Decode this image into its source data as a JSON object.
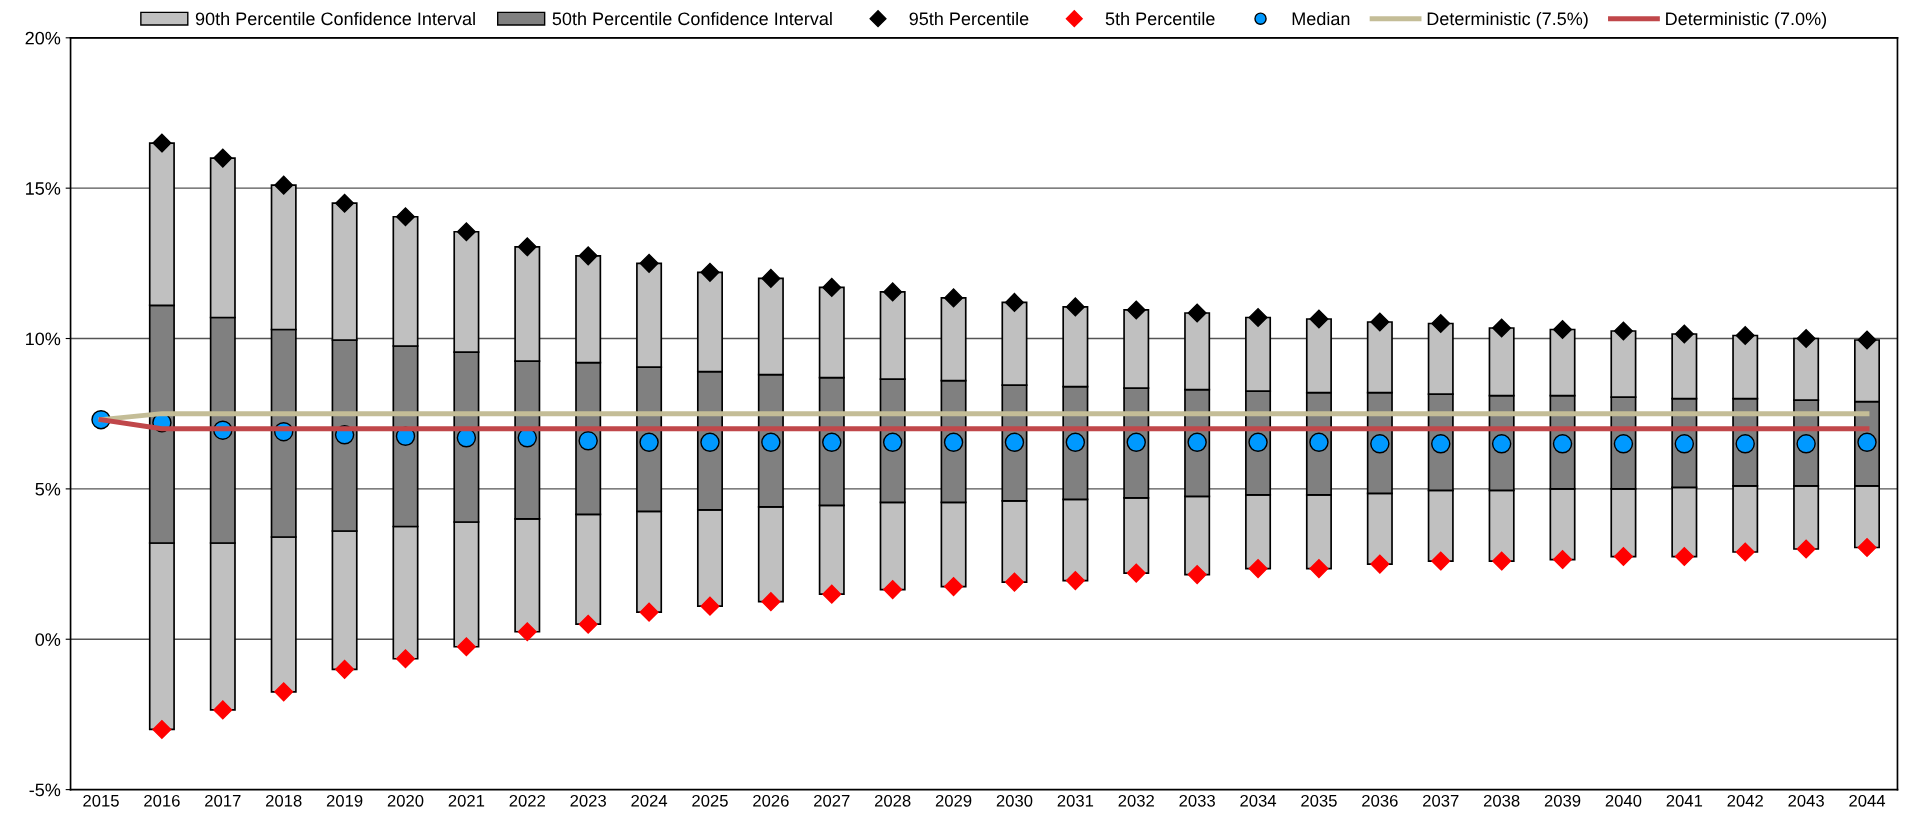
{
  "chart_data": {
    "type": "bar",
    "categories": [
      "2015",
      "2016",
      "2017",
      "2018",
      "2019",
      "2020",
      "2021",
      "2022",
      "2023",
      "2024",
      "2025",
      "2026",
      "2027",
      "2028",
      "2029",
      "2030",
      "2031",
      "2032",
      "2033",
      "2034",
      "2035",
      "2036",
      "2037",
      "2038",
      "2039",
      "2040",
      "2041",
      "2042",
      "2043",
      "2044"
    ],
    "series": [
      {
        "name": "90th Percentile Confidence Interval",
        "color": "#c0c0c0",
        "base": [
          null,
          -3.0,
          -2.35,
          -1.75,
          -1.0,
          -0.65,
          -0.25,
          0.25,
          0.5,
          0.9,
          1.1,
          1.25,
          1.5,
          1.65,
          1.75,
          1.9,
          1.95,
          2.2,
          2.15,
          2.35,
          2.35,
          2.5,
          2.6,
          2.6,
          2.65,
          2.75,
          2.75,
          2.9,
          3.0,
          3.05
        ],
        "values": [
          null,
          6.2,
          5.55,
          5.15,
          4.6,
          4.4,
          4.15,
          3.75,
          3.65,
          3.35,
          3.2,
          3.15,
          2.95,
          2.9,
          2.8,
          2.7,
          2.7,
          2.5,
          2.6,
          2.45,
          2.45,
          2.35,
          2.35,
          2.35,
          2.35,
          2.25,
          2.3,
          2.2,
          2.1,
          2.05
        ]
      },
      {
        "name": "50th Percentile Confidence Interval",
        "color": "#808080",
        "base": [
          null,
          3.2,
          3.2,
          3.4,
          3.6,
          3.75,
          3.9,
          4.0,
          4.15,
          4.25,
          4.3,
          4.4,
          4.45,
          4.55,
          4.55,
          4.6,
          4.65,
          4.7,
          4.75,
          4.8,
          4.8,
          4.85,
          4.95,
          4.95,
          5.0,
          5.0,
          5.05,
          5.1,
          5.1,
          5.1
        ],
        "values": [
          null,
          7.9,
          7.5,
          6.9,
          6.35,
          6.0,
          5.65,
          5.25,
          5.05,
          4.8,
          4.6,
          4.4,
          4.25,
          4.1,
          4.05,
          3.85,
          3.75,
          3.65,
          3.55,
          3.45,
          3.4,
          3.35,
          3.2,
          3.15,
          3.1,
          3.05,
          2.95,
          2.9,
          2.85,
          2.8
        ]
      },
      {
        "color": "#c0c0c0",
        "base": [
          null,
          11.1,
          10.7,
          10.3,
          9.95,
          9.75,
          9.55,
          9.25,
          9.2,
          9.05,
          8.9,
          8.8,
          8.7,
          8.65,
          8.6,
          8.45,
          8.4,
          8.35,
          8.3,
          8.25,
          8.2,
          8.2,
          8.15,
          8.1,
          8.1,
          8.05,
          8.0,
          8.0,
          7.95,
          7.9
        ],
        "values": [
          null,
          5.4,
          5.3,
          4.8,
          4.55,
          4.3,
          4.0,
          3.8,
          3.55,
          3.45,
          3.3,
          3.2,
          3.0,
          2.9,
          2.75,
          2.75,
          2.65,
          2.6,
          2.55,
          2.45,
          2.45,
          2.35,
          2.35,
          2.25,
          2.2,
          2.2,
          2.15,
          2.1,
          2.05,
          2.05
        ]
      },
      {
        "name": "95th Percentile",
        "type": "scatter",
        "marker": "diamond",
        "color": "#000000",
        "values": [
          null,
          16.5,
          16.0,
          15.1,
          14.5,
          14.05,
          13.55,
          13.05,
          12.75,
          12.5,
          12.2,
          12.0,
          11.7,
          11.55,
          11.35,
          11.2,
          11.05,
          10.95,
          10.85,
          10.7,
          10.65,
          10.55,
          10.5,
          10.35,
          10.3,
          10.25,
          10.15,
          10.1,
          10.0,
          9.95
        ]
      },
      {
        "name": "5th Percentile",
        "type": "scatter",
        "marker": "diamond",
        "color": "#ff0000",
        "values": [
          null,
          -3.0,
          -2.35,
          -1.75,
          -1.0,
          -0.65,
          -0.25,
          0.25,
          0.5,
          0.9,
          1.1,
          1.25,
          1.5,
          1.65,
          1.75,
          1.9,
          1.95,
          2.2,
          2.15,
          2.35,
          2.35,
          2.5,
          2.6,
          2.6,
          2.65,
          2.75,
          2.75,
          2.9,
          3.0,
          3.05
        ]
      },
      {
        "name": "Median",
        "type": "scatter",
        "marker": "circle",
        "color": "#0099ff",
        "values": [
          7.3,
          7.2,
          6.95,
          6.9,
          6.8,
          6.75,
          6.7,
          6.7,
          6.6,
          6.55,
          6.55,
          6.55,
          6.55,
          6.55,
          6.55,
          6.55,
          6.55,
          6.55,
          6.55,
          6.55,
          6.55,
          6.5,
          6.5,
          6.5,
          6.5,
          6.5,
          6.5,
          6.5,
          6.5,
          6.55
        ]
      },
      {
        "name": "Deterministic (7.5%)",
        "type": "line",
        "color": "#c4bd97",
        "values": [
          7.3,
          7.5,
          7.5,
          7.5,
          7.5,
          7.5,
          7.5,
          7.5,
          7.5,
          7.5,
          7.5,
          7.5,
          7.5,
          7.5,
          7.5,
          7.5,
          7.5,
          7.5,
          7.5,
          7.5,
          7.5,
          7.5,
          7.5,
          7.5,
          7.5,
          7.5,
          7.5,
          7.5,
          7.5,
          7.5
        ]
      },
      {
        "name": "Deterministic (7.0%)",
        "type": "line",
        "color": "#c0474a",
        "values": [
          7.3,
          7.0,
          7.0,
          7.0,
          7.0,
          7.0,
          7.0,
          7.0,
          7.0,
          7.0,
          7.0,
          7.0,
          7.0,
          7.0,
          7.0,
          7.0,
          7.0,
          7.0,
          7.0,
          7.0,
          7.0,
          7.0,
          7.0,
          7.0,
          7.0,
          7.0,
          7.0,
          7.0,
          7.0,
          7.0
        ]
      }
    ],
    "ylim": [
      -5,
      20
    ],
    "yticks": [
      {
        "value": -5,
        "label": "-5%"
      },
      {
        "value": 0,
        "label": "0%"
      },
      {
        "value": 5,
        "label": "5%"
      },
      {
        "value": 10,
        "label": "10%"
      },
      {
        "value": 15,
        "label": "15%"
      },
      {
        "value": 20,
        "label": "20%"
      }
    ],
    "grid": "y",
    "legend": "top"
  }
}
